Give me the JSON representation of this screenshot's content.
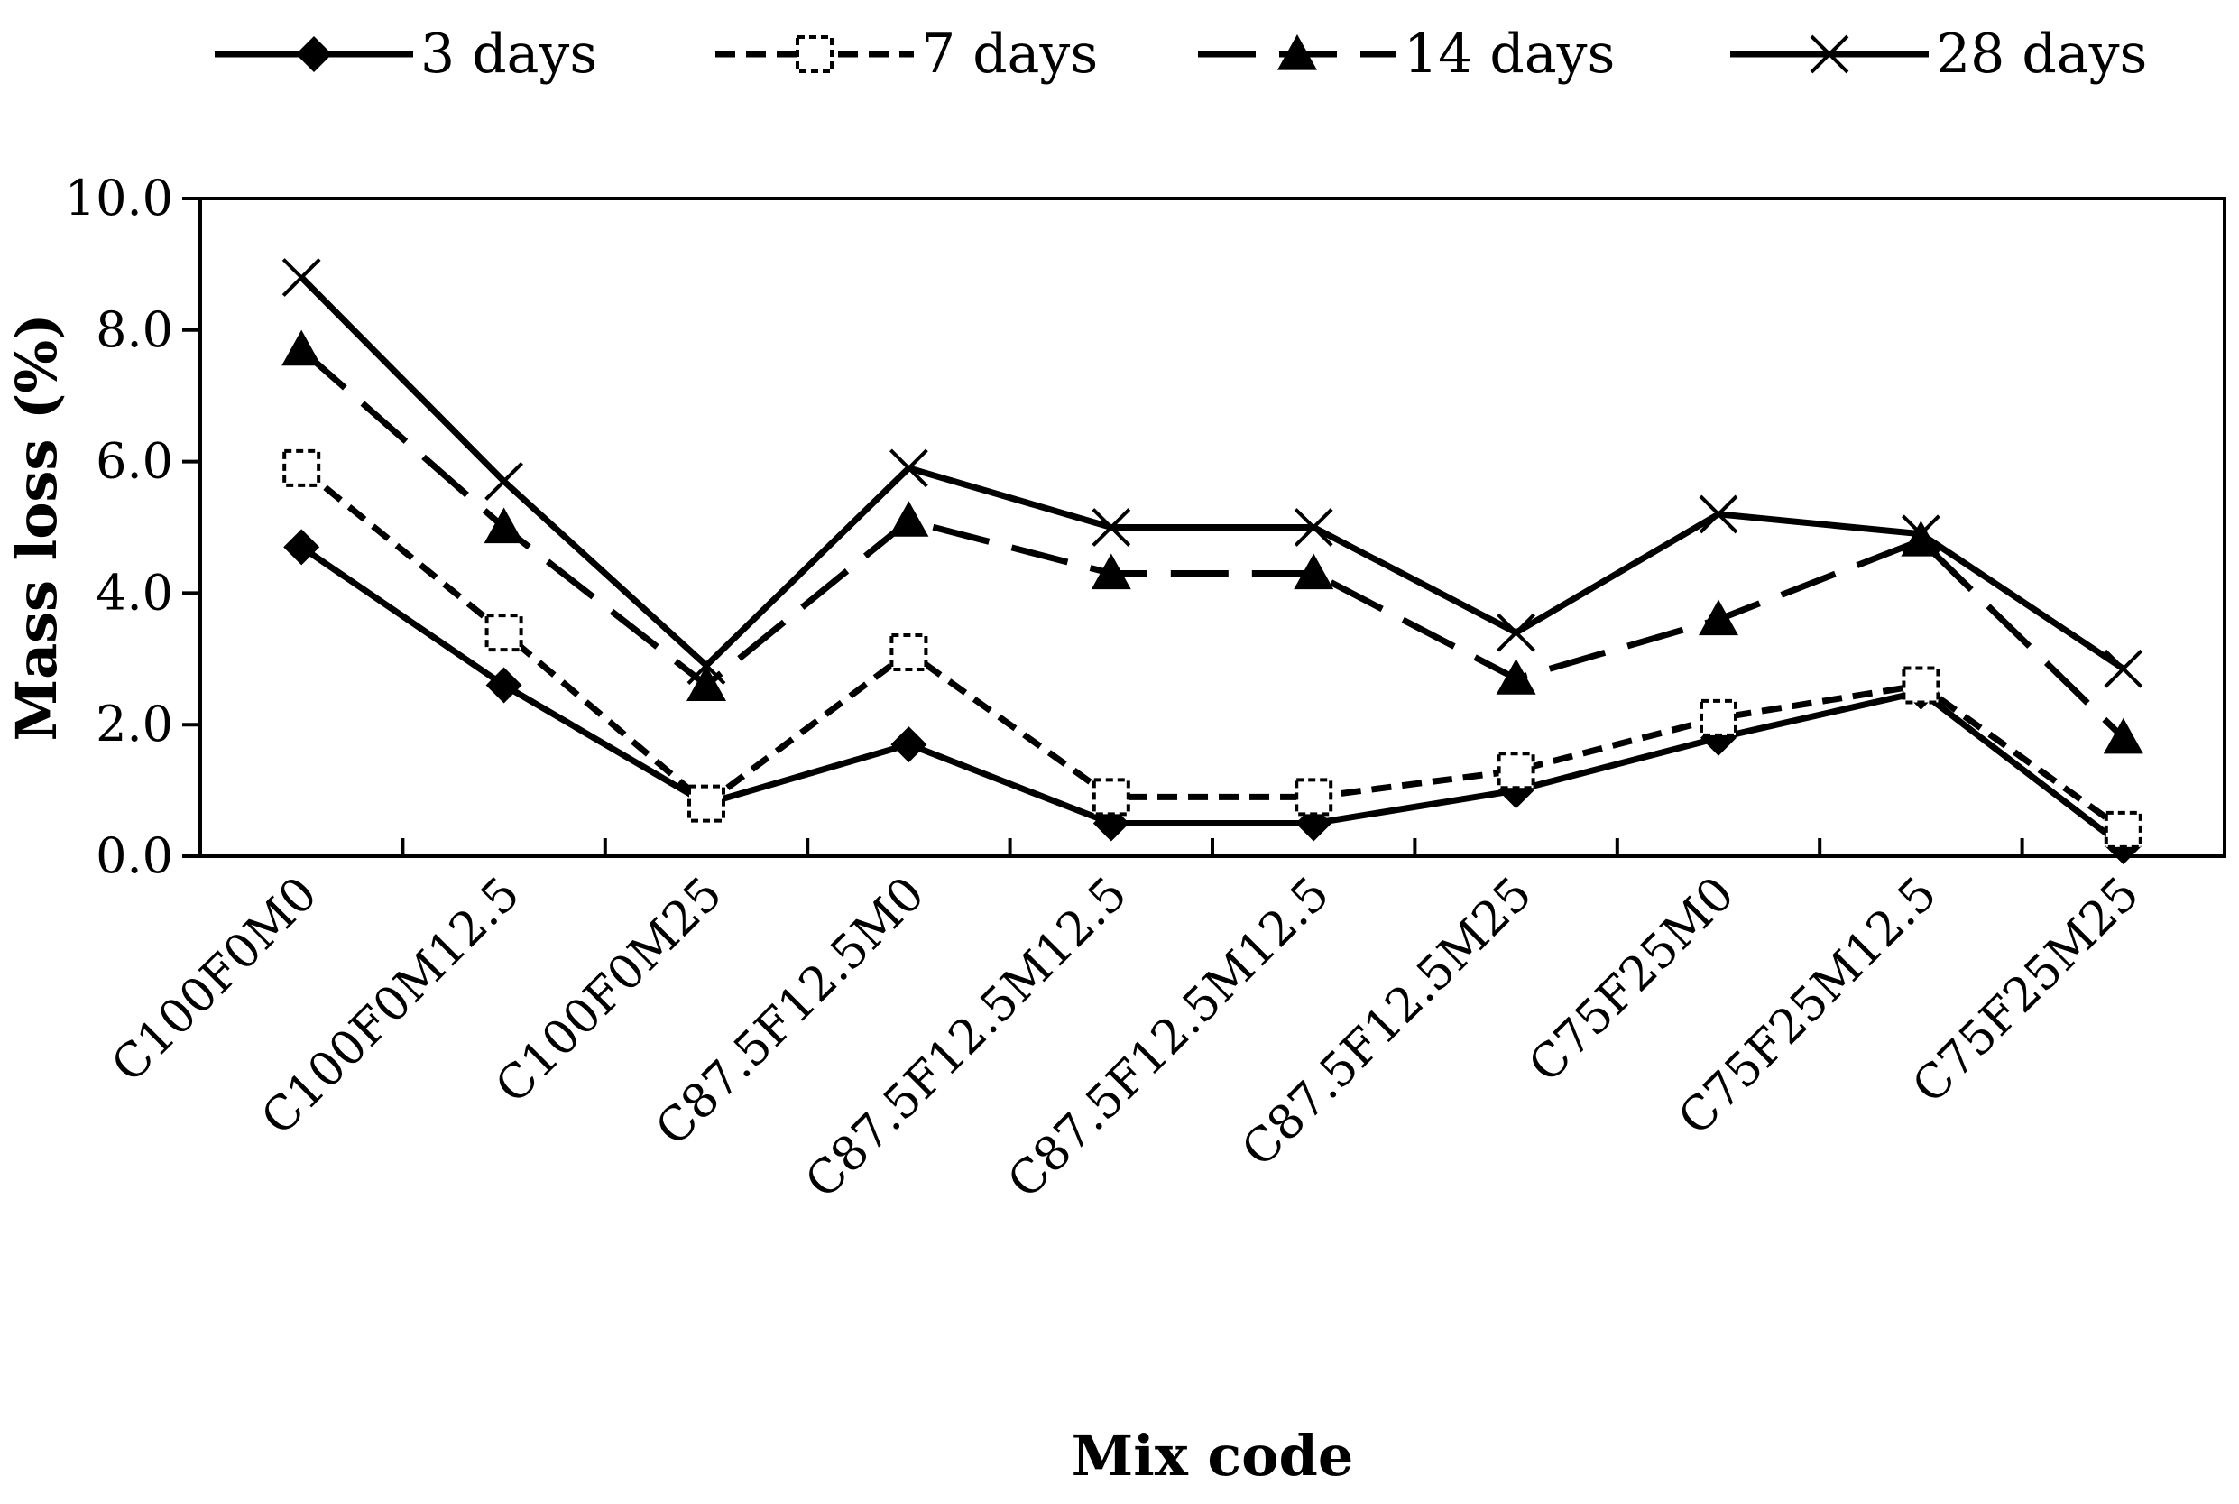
{
  "chart_data": {
    "type": "line",
    "title": "",
    "xlabel": "Mix code",
    "ylabel": "Mass loss (%)",
    "ylim": [
      0,
      10
    ],
    "yticks": [
      0,
      2,
      4,
      6,
      8,
      10
    ],
    "ytick_labels": [
      "0.0",
      "2.0",
      "4.0",
      "6.0",
      "8.0",
      "10.0"
    ],
    "grid": false,
    "legend_position": "top",
    "categories": [
      "C100F0M0",
      "C100F0M12.5",
      "C100F0M25",
      "C87.5F12.5M0",
      "C87.5F12.5M12.5",
      "C87.5F12.5M12.5",
      "C87.5F12.5M25",
      "C75F25M0",
      "C75F25M12.5",
      "C75F25M25"
    ],
    "series": [
      {
        "name": "3 days",
        "marker": "diamond",
        "dash": "solid",
        "values": [
          4.7,
          2.6,
          0.8,
          1.7,
          0.5,
          0.5,
          1.0,
          1.8,
          2.5,
          0.15
        ]
      },
      {
        "name": "7 days",
        "marker": "square-open",
        "dash": "dashed",
        "values": [
          5.9,
          3.4,
          0.8,
          3.1,
          0.9,
          0.9,
          1.3,
          2.1,
          2.6,
          0.4
        ]
      },
      {
        "name": "14 days",
        "marker": "triangle",
        "dash": "long-dash",
        "values": [
          7.7,
          5.0,
          2.6,
          5.1,
          4.3,
          4.3,
          2.7,
          3.6,
          4.8,
          1.8
        ]
      },
      {
        "name": "28 days",
        "marker": "x",
        "dash": "solid",
        "values": [
          8.8,
          5.7,
          2.9,
          5.9,
          5.0,
          5.0,
          3.4,
          5.2,
          4.9,
          2.85
        ]
      }
    ]
  }
}
